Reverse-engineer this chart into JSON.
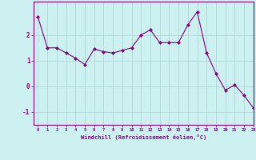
{
  "x": [
    0,
    1,
    2,
    3,
    4,
    5,
    6,
    7,
    8,
    9,
    10,
    11,
    12,
    13,
    14,
    15,
    16,
    17,
    18,
    19,
    20,
    21,
    22,
    23
  ],
  "y": [
    2.7,
    1.5,
    1.5,
    1.3,
    1.1,
    0.85,
    1.45,
    1.35,
    1.3,
    1.4,
    1.5,
    2.0,
    2.2,
    1.7,
    1.7,
    1.7,
    2.4,
    2.9,
    1.3,
    0.5,
    -0.15,
    0.05,
    -0.35,
    -0.85
  ],
  "line_color": "#800080",
  "marker_color": "#800080",
  "bg_color": "#cdf0f0",
  "grid_color": "#b0d8d8",
  "axis_color": "#800080",
  "xlabel": "Windchill (Refroidissement éolien,°C)",
  "xlim": [
    -0.5,
    23
  ],
  "ylim": [
    -1.5,
    3.3
  ],
  "yticks": [
    -1,
    0,
    1,
    2
  ],
  "xticks": [
    0,
    1,
    2,
    3,
    4,
    5,
    6,
    7,
    8,
    9,
    10,
    11,
    12,
    13,
    14,
    15,
    16,
    17,
    18,
    19,
    20,
    21,
    22,
    23
  ],
  "font_color": "#800080"
}
